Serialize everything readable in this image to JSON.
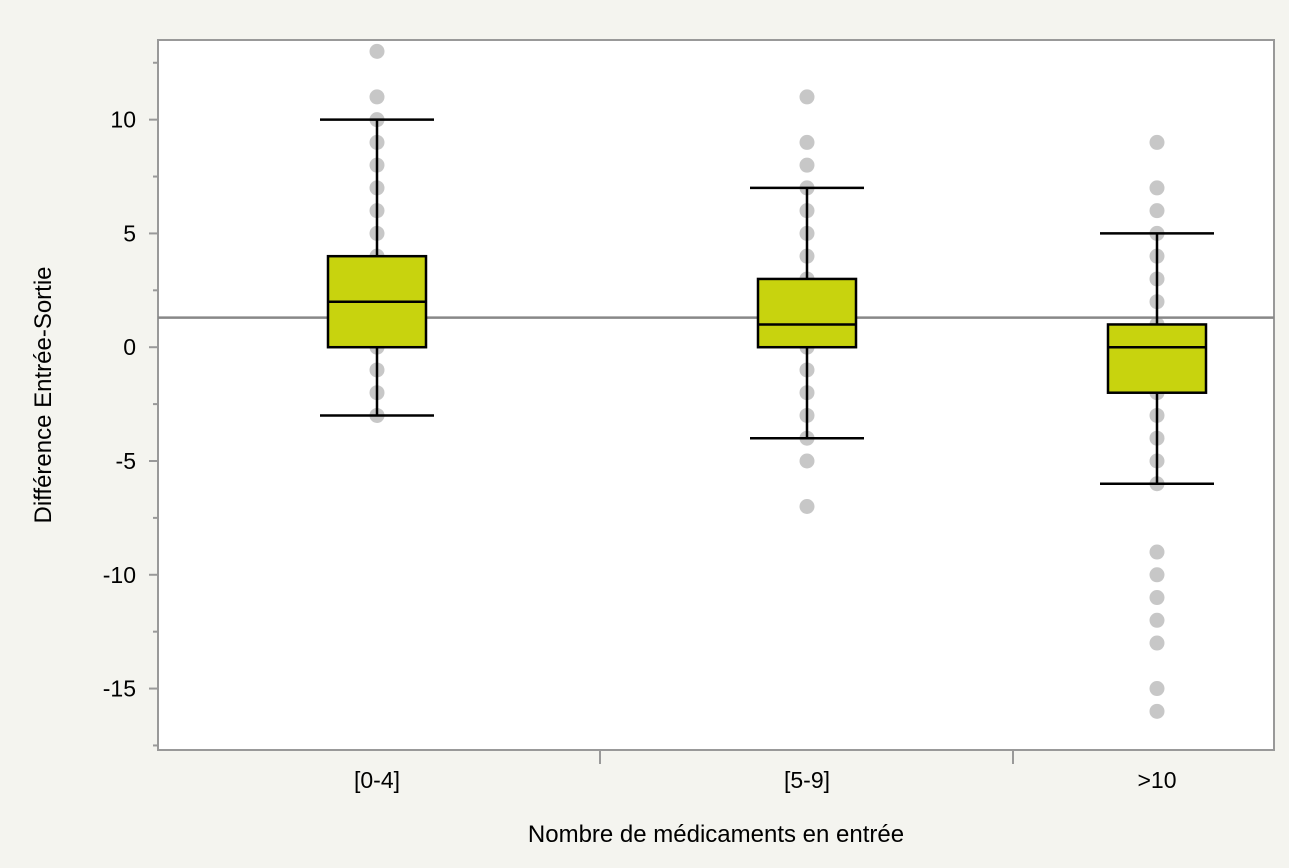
{
  "chart_data": {
    "type": "box",
    "title": "",
    "xlabel": "Nombre de médicaments en entrée",
    "ylabel": "Différence Entrée-Sortie",
    "categories": [
      "[0-4]",
      "[5-9]",
      ">10"
    ],
    "ylim": [
      -17.7,
      13.5
    ],
    "yticks": [
      -15,
      -10,
      -5,
      0,
      5,
      10
    ],
    "ytick_labels": [
      "-15",
      "-10",
      "-5",
      "0",
      "5",
      "10"
    ],
    "reference_line": 1.3,
    "grid": false,
    "legend": "none",
    "box_color": "#c8d30e",
    "point_color": "#bdbdbd",
    "boxes": [
      {
        "category": "[0-4]",
        "whisker_low": -3,
        "q1": 0,
        "median": 2,
        "q3": 4,
        "whisker_high": 10
      },
      {
        "category": "[5-9]",
        "whisker_low": -4,
        "q1": 0,
        "median": 1,
        "q3": 3,
        "whisker_high": 7
      },
      {
        "category": ">10",
        "whisker_low": -6,
        "q1": -2,
        "median": 0,
        "q3": 1,
        "whisker_high": 5
      }
    ],
    "points": [
      {
        "category": "[0-4]",
        "values": [
          13,
          11,
          10,
          9,
          8,
          7,
          6,
          5,
          4,
          3,
          2,
          1,
          0,
          -1,
          -2,
          -3
        ]
      },
      {
        "category": "[5-9]",
        "values": [
          11,
          9,
          8,
          7,
          6,
          5,
          4,
          3,
          2,
          1,
          0,
          -1,
          -2,
          -3,
          -4,
          -5,
          -7
        ]
      },
      {
        "category": ">10",
        "values": [
          9,
          7,
          6,
          5,
          4,
          3,
          2,
          1,
          0,
          -1,
          -2,
          -3,
          -4,
          -5,
          -6,
          -9,
          -10,
          -11,
          -12,
          -13,
          -15,
          -16
        ]
      }
    ]
  }
}
